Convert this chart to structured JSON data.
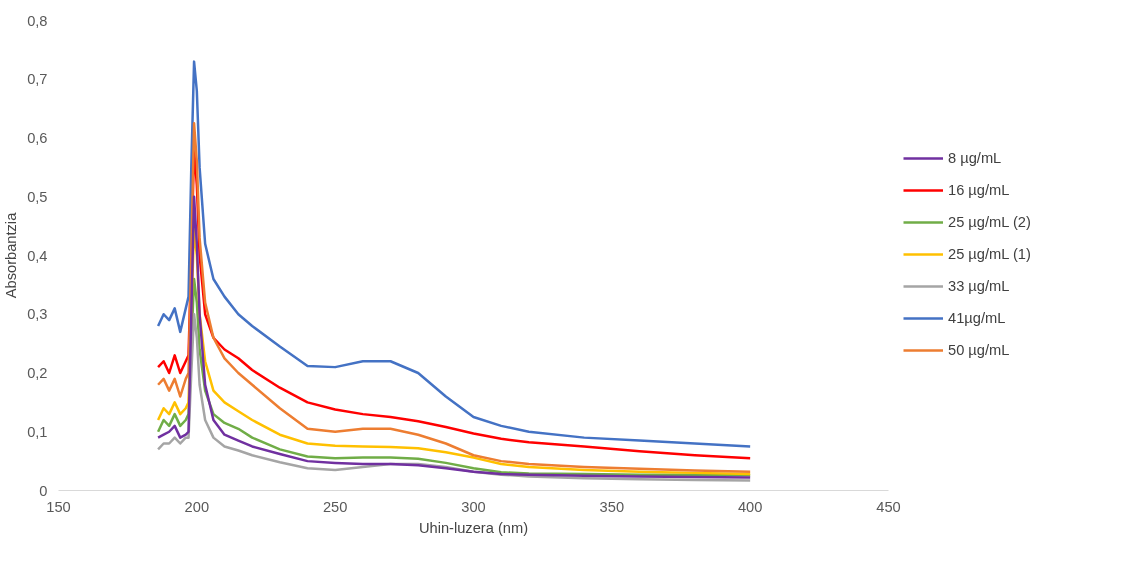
{
  "chart_data": {
    "type": "line",
    "xlabel": "Uhin-luzera (nm)",
    "ylabel": "Absorbantzia",
    "x": [
      186,
      188,
      190,
      192,
      194,
      196,
      197,
      198,
      199,
      200,
      201,
      203,
      206,
      210,
      215,
      220,
      230,
      240,
      250,
      260,
      270,
      280,
      290,
      300,
      310,
      320,
      340,
      360,
      380,
      400
    ],
    "xlim": [
      150,
      450
    ],
    "xticks": [
      150,
      200,
      250,
      300,
      350,
      400,
      450
    ],
    "ylim": [
      0,
      0.8
    ],
    "yticks": [
      0,
      {
        "value": 0.1,
        "label": "0,1"
      },
      {
        "value": 0.2,
        "label": "0,2"
      },
      {
        "value": 0.3,
        "label": "0,3"
      },
      {
        "value": 0.4,
        "label": "0,4"
      },
      {
        "value": 0.5,
        "label": "0,5"
      },
      {
        "value": 0.6,
        "label": "0,6"
      },
      {
        "value": 0.7,
        "label": "0,7"
      },
      {
        "value": 0.8,
        "label": "0,8"
      }
    ],
    "grid": false,
    "legend": "right",
    "marker": "none",
    "line_style": "solid",
    "series": [
      {
        "name": "8 µg/mL",
        "color": "#7030a0",
        "values": [
          0.09,
          0.095,
          0.1,
          0.11,
          0.09,
          0.095,
          0.1,
          0.3,
          0.5,
          0.42,
          0.3,
          0.18,
          0.12,
          0.095,
          0.085,
          0.075,
          0.062,
          0.05,
          0.047,
          0.045,
          0.045,
          0.043,
          0.038,
          0.032,
          0.028,
          0.027,
          0.025,
          0.024,
          0.023,
          0.022
        ]
      },
      {
        "name": "16 µg/mL",
        "color": "#ff0000",
        "values": [
          0.21,
          0.22,
          0.2,
          0.23,
          0.2,
          0.22,
          0.23,
          0.4,
          0.58,
          0.52,
          0.4,
          0.3,
          0.26,
          0.24,
          0.225,
          0.205,
          0.175,
          0.15,
          0.138,
          0.13,
          0.125,
          0.118,
          0.108,
          0.097,
          0.088,
          0.082,
          0.075,
          0.067,
          0.06,
          0.055
        ]
      },
      {
        "name": "25 µg/mL (2)",
        "color": "#70ad47",
        "values": [
          0.1,
          0.12,
          0.11,
          0.13,
          0.11,
          0.12,
          0.13,
          0.25,
          0.36,
          0.32,
          0.24,
          0.17,
          0.13,
          0.115,
          0.105,
          0.09,
          0.07,
          0.058,
          0.055,
          0.056,
          0.056,
          0.054,
          0.047,
          0.038,
          0.031,
          0.029,
          0.028,
          0.027,
          0.027,
          0.026
        ]
      },
      {
        "name": "25 µg/mL (1)",
        "color": "#ffc000",
        "values": [
          0.12,
          0.14,
          0.13,
          0.15,
          0.13,
          0.14,
          0.15,
          0.3,
          0.445,
          0.4,
          0.3,
          0.22,
          0.17,
          0.15,
          0.135,
          0.12,
          0.095,
          0.08,
          0.076,
          0.075,
          0.074,
          0.072,
          0.065,
          0.056,
          0.045,
          0.04,
          0.035,
          0.032,
          0.03,
          0.028
        ]
      },
      {
        "name": "33 µg/mL",
        "color": "#a5a5a5",
        "values": [
          0.07,
          0.08,
          0.08,
          0.09,
          0.08,
          0.09,
          0.09,
          0.2,
          0.3,
          0.26,
          0.18,
          0.12,
          0.09,
          0.075,
          0.068,
          0.06,
          0.048,
          0.038,
          0.035,
          0.04,
          0.045,
          0.045,
          0.04,
          0.032,
          0.027,
          0.024,
          0.021,
          0.019,
          0.018,
          0.017
        ]
      },
      {
        "name": "41µg/mL",
        "color": "#4472c4",
        "values": [
          0.28,
          0.3,
          0.29,
          0.31,
          0.27,
          0.31,
          0.33,
          0.55,
          0.73,
          0.68,
          0.55,
          0.42,
          0.36,
          0.33,
          0.3,
          0.28,
          0.245,
          0.212,
          0.21,
          0.22,
          0.22,
          0.2,
          0.16,
          0.125,
          0.11,
          0.1,
          0.09,
          0.085,
          0.08,
          0.075
        ]
      },
      {
        "name": "50 µg/mL",
        "color": "#ed7d31",
        "values": [
          0.18,
          0.19,
          0.17,
          0.19,
          0.16,
          0.19,
          0.2,
          0.4,
          0.625,
          0.56,
          0.43,
          0.32,
          0.26,
          0.225,
          0.2,
          0.18,
          0.14,
          0.105,
          0.1,
          0.105,
          0.105,
          0.095,
          0.08,
          0.06,
          0.05,
          0.045,
          0.04,
          0.037,
          0.034,
          0.032
        ]
      }
    ]
  }
}
